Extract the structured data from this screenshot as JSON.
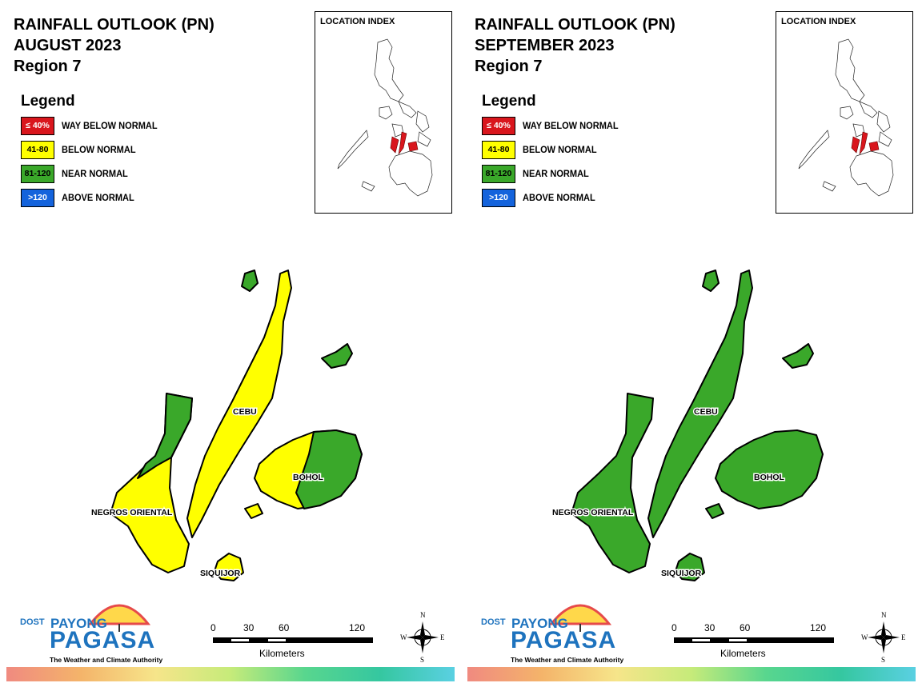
{
  "legend_title": "Legend",
  "inset_title": "LOCATION INDEX",
  "legend": [
    {
      "range": "≤ 40%",
      "label": "WAY BELOW NORMAL",
      "color": "#d9161d",
      "text_color": "#ffffff"
    },
    {
      "range": "41-80",
      "label": "BELOW NORMAL",
      "color": "#ffff00",
      "text_color": "#000000"
    },
    {
      "range": "81-120",
      "label": "NEAR NORMAL",
      "color": "#3aa82a",
      "text_color": "#000000"
    },
    {
      "range": ">120",
      "label": "ABOVE NORMAL",
      "color": "#1463dc",
      "text_color": "#ffffff"
    }
  ],
  "panels": [
    {
      "title1": "RAINFALL OUTLOOK (PN)",
      "title2": "AUGUST 2023",
      "title3": "Region 7",
      "provinces": {
        "negros_oriental": "below normal (south) / near normal (north)",
        "cebu": "below normal",
        "bohol": "below normal (west) / near normal (east)",
        "siquijor": "below normal"
      }
    },
    {
      "title1": "RAINFALL OUTLOOK (PN)",
      "title2": "SEPTEMBER 2023",
      "title3": "Region 7",
      "provinces": {
        "negros_oriental": "near normal",
        "cebu": "near normal",
        "bohol": "near normal",
        "siquijor": "near normal"
      }
    }
  ],
  "map_labels": {
    "cebu": "CEBU",
    "bohol": "BOHOL",
    "negros": "NEGROS ORIENTAL",
    "siquijor": "SIQUIJOR"
  },
  "colors": {
    "below_normal": "#ffff00",
    "near_normal": "#3aa82a",
    "way_below_normal": "#d9161d",
    "outline": "#000000"
  },
  "logo": {
    "dost": "DOST",
    "payong": "PAYONG",
    "pagasa": "PAGASA",
    "tagline": "The Weather and Climate Authority"
  },
  "scale": {
    "ticks": [
      "0",
      "30",
      "60",
      "120"
    ],
    "unit": "Kilometers"
  },
  "compass": {
    "n": "N",
    "s": "S",
    "e": "E",
    "w": "W"
  }
}
